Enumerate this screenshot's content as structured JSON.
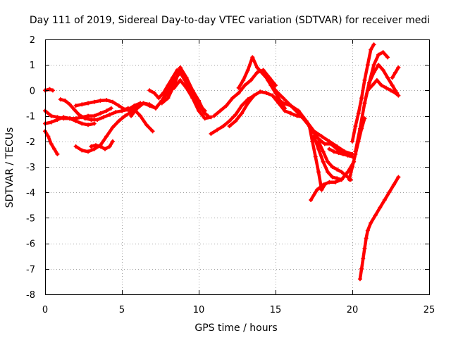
{
  "chart_data": {
    "type": "scatter",
    "title": "Day 111 of 2019, Sidereal Day-to-day VTEC variation (SDTVAR) for receiver medi",
    "xlabel": "GPS time / hours",
    "ylabel": "SDTVAR / TECUs",
    "xlim": [
      0,
      25
    ],
    "ylim": [
      -8,
      2
    ],
    "xticks": [
      0,
      5,
      10,
      15,
      20,
      25
    ],
    "yticks": [
      -8,
      -7,
      -6,
      -5,
      -4,
      -3,
      -2,
      -1,
      0,
      1,
      2
    ],
    "grid": true,
    "marker": "+",
    "color": "#ff0000",
    "series": [
      {
        "x": [
          0.0,
          0.3,
          0.5
        ],
        "y": [
          0.0,
          0.05,
          0.0
        ]
      },
      {
        "x": [
          0.0,
          0.2,
          0.4,
          0.6,
          0.8
        ],
        "y": [
          -1.6,
          -1.8,
          -2.1,
          -2.3,
          -2.5
        ]
      },
      {
        "x": [
          0.0,
          0.4,
          0.8,
          1.2,
          1.6,
          2.0,
          2.4,
          2.8,
          3.2,
          3.6,
          4.0,
          4.3
        ],
        "y": [
          -0.8,
          -1.0,
          -1.05,
          -1.1,
          -1.1,
          -1.1,
          -1.05,
          -1.0,
          -1.0,
          -0.9,
          -0.8,
          -0.7
        ]
      },
      {
        "x": [
          0.0,
          0.4,
          0.8,
          1.2,
          1.6,
          2.0,
          2.4,
          2.8,
          3.2
        ],
        "y": [
          -1.3,
          -1.25,
          -1.15,
          -1.05,
          -1.1,
          -1.2,
          -1.3,
          -1.35,
          -1.3
        ]
      },
      {
        "x": [
          1.0,
          1.3,
          1.6,
          1.9,
          2.2,
          2.6,
          3.0,
          3.4,
          3.8,
          4.2,
          4.6,
          5.0,
          5.4,
          5.8,
          6.2
        ],
        "y": [
          -0.35,
          -0.4,
          -0.55,
          -0.75,
          -0.95,
          -1.1,
          -1.15,
          -1.15,
          -1.05,
          -0.95,
          -0.85,
          -0.8,
          -0.75,
          -0.6,
          -0.5
        ]
      },
      {
        "x": [
          2.0,
          2.4,
          2.8,
          3.2,
          3.6,
          4.0,
          4.4,
          4.8,
          5.2,
          5.6,
          6.0,
          6.4
        ],
        "y": [
          -0.6,
          -0.55,
          -0.5,
          -0.45,
          -0.4,
          -0.38,
          -0.45,
          -0.6,
          -0.75,
          -0.8,
          -0.7,
          -0.5
        ]
      },
      {
        "x": [
          2.0,
          2.4,
          2.8,
          3.2,
          3.6,
          4.0,
          4.4,
          4.8,
          5.2,
          5.6
        ],
        "y": [
          -2.2,
          -2.35,
          -2.4,
          -2.3,
          -2.15,
          -1.8,
          -1.45,
          -1.2,
          -1.0,
          -0.85
        ]
      },
      {
        "x": [
          3.0,
          3.3,
          3.6,
          3.9,
          4.2,
          4.4
        ],
        "y": [
          -2.2,
          -2.15,
          -2.2,
          -2.3,
          -2.2,
          -2.0
        ]
      },
      {
        "x": [
          5.0,
          5.4,
          5.8,
          6.2,
          6.6,
          7.0
        ],
        "y": [
          -0.8,
          -0.7,
          -0.75,
          -1.0,
          -1.35,
          -1.6
        ]
      },
      {
        "x": [
          5.6,
          6.0,
          6.4,
          6.8,
          7.2,
          7.6,
          8.0,
          8.4
        ],
        "y": [
          -0.8,
          -0.6,
          -0.5,
          -0.6,
          -0.7,
          -0.4,
          -0.1,
          0.2
        ]
      },
      {
        "x": [
          5.6,
          6.0,
          6.4,
          6.8,
          7.2,
          7.6,
          8.0,
          8.4,
          8.8,
          9.2,
          9.6,
          10.0,
          10.4
        ],
        "y": [
          -1.0,
          -0.7,
          -0.5,
          -0.55,
          -0.7,
          -0.4,
          0.0,
          0.4,
          0.7,
          0.3,
          -0.2,
          -0.6,
          -0.9
        ]
      },
      {
        "x": [
          6.8,
          7.1,
          7.4,
          7.7,
          8.0,
          8.3,
          8.6,
          8.9,
          9.2,
          9.5,
          9.8,
          10.1,
          10.4
        ],
        "y": [
          0.0,
          -0.1,
          -0.3,
          -0.1,
          0.2,
          0.5,
          0.8,
          0.6,
          0.3,
          0.0,
          -0.3,
          -0.6,
          -0.8
        ]
      },
      {
        "x": [
          7.6,
          8.0,
          8.4,
          8.8,
          9.2,
          9.6,
          10.0,
          10.4,
          10.6
        ],
        "y": [
          -0.5,
          -0.3,
          0.2,
          0.9,
          0.5,
          0.0,
          -0.4,
          -0.9,
          -1.0
        ]
      },
      {
        "x": [
          8.4,
          8.8,
          9.2,
          9.6,
          10.0,
          10.4,
          10.8
        ],
        "y": [
          0.1,
          0.4,
          0.1,
          -0.3,
          -0.8,
          -1.1,
          -1.05
        ]
      },
      {
        "x": [
          10.8,
          11.2,
          11.6,
          12.0,
          12.4,
          12.8,
          13.2,
          13.6
        ],
        "y": [
          -1.7,
          -1.55,
          -1.4,
          -1.2,
          -0.95,
          -0.6,
          -0.35,
          -0.2
        ]
      },
      {
        "x": [
          11.0,
          11.4,
          11.8,
          12.2,
          12.6,
          13.0,
          13.4,
          13.8,
          14.2,
          14.6,
          15.0
        ],
        "y": [
          -1.0,
          -0.8,
          -0.6,
          -0.3,
          -0.1,
          0.2,
          0.4,
          0.7,
          0.8,
          0.5,
          0.2
        ]
      },
      {
        "x": [
          12.0,
          12.4,
          12.8,
          13.2,
          13.6,
          14.0,
          14.4,
          14.8,
          15.2,
          15.6,
          16.0,
          16.4,
          16.8
        ],
        "y": [
          -1.4,
          -1.2,
          -0.9,
          -0.5,
          -0.2,
          -0.05,
          -0.1,
          -0.2,
          -0.5,
          -0.8,
          -0.9,
          -1.0,
          -1.05
        ]
      },
      {
        "x": [
          12.6,
          12.9,
          13.2,
          13.5,
          13.8,
          14.1,
          14.4,
          14.7,
          15.0,
          15.3,
          15.6
        ],
        "y": [
          0.1,
          0.4,
          0.8,
          1.3,
          0.9,
          0.7,
          0.5,
          0.2,
          -0.1,
          -0.4,
          -0.7
        ]
      },
      {
        "x": [
          14.5,
          15.0,
          15.5,
          16.0,
          16.5,
          17.0,
          17.5,
          18.0,
          18.5,
          19.0,
          19.5,
          20.0
        ],
        "y": [
          0.4,
          0.0,
          -0.3,
          -0.6,
          -0.9,
          -1.2,
          -1.6,
          -1.8,
          -2.0,
          -2.2,
          -2.4,
          -2.5
        ]
      },
      {
        "x": [
          15.0,
          15.5,
          16.0,
          16.5,
          17.0,
          17.4,
          17.8,
          18.2,
          18.6,
          19.0,
          19.4,
          19.8
        ],
        "y": [
          -0.3,
          -0.5,
          -0.6,
          -0.8,
          -1.2,
          -1.6,
          -1.9,
          -2.1,
          -2.1,
          -2.3,
          -2.45,
          -2.55
        ]
      },
      {
        "x": [
          16.8,
          17.2,
          17.4,
          17.6,
          17.8,
          18.0,
          18.2
        ],
        "y": [
          -1.1,
          -1.4,
          -2.0,
          -2.6,
          -3.2,
          -3.9,
          -3.7
        ]
      },
      {
        "x": [
          17.3,
          17.7,
          18.1,
          18.5,
          18.9,
          19.3,
          19.7,
          20.1
        ],
        "y": [
          -4.3,
          -3.9,
          -3.7,
          -3.6,
          -3.6,
          -3.5,
          -3.2,
          -2.8
        ]
      },
      {
        "x": [
          17.5,
          17.8,
          18.1,
          18.4,
          18.7,
          19.0,
          19.3
        ],
        "y": [
          -1.8,
          -2.3,
          -2.8,
          -3.2,
          -3.4,
          -3.45,
          -3.5
        ]
      },
      {
        "x": [
          17.8,
          18.1,
          18.4,
          18.7,
          19.0,
          19.3,
          19.6,
          19.9
        ],
        "y": [
          -2.0,
          -2.4,
          -2.8,
          -3.0,
          -3.1,
          -3.2,
          -3.35,
          -3.5
        ]
      },
      {
        "x": [
          18.5,
          18.8,
          19.1,
          19.4,
          19.7,
          20.0
        ],
        "y": [
          -2.3,
          -2.4,
          -2.45,
          -2.5,
          -2.55,
          -2.6
        ]
      },
      {
        "x": [
          19.8,
          20.0,
          20.2,
          20.4,
          20.6,
          20.8
        ],
        "y": [
          -3.5,
          -3.0,
          -2.5,
          -2.0,
          -1.5,
          -1.1
        ]
      },
      {
        "x": [
          20.0,
          20.2,
          20.4,
          20.6,
          20.8,
          21.0,
          21.2,
          21.4
        ],
        "y": [
          -2.0,
          -1.4,
          -0.9,
          -0.3,
          0.4,
          1.0,
          1.6,
          1.8
        ]
      },
      {
        "x": [
          20.2,
          20.5,
          20.8,
          21.1,
          21.4,
          21.7,
          22.0,
          22.3
        ],
        "y": [
          -2.4,
          -1.5,
          -0.5,
          0.3,
          1.0,
          1.4,
          1.5,
          1.3
        ]
      },
      {
        "x": [
          20.8,
          21.1,
          21.4,
          21.7,
          22.0,
          22.3,
          22.6,
          22.9
        ],
        "y": [
          -0.5,
          0.3,
          0.7,
          1.0,
          0.8,
          0.5,
          0.2,
          -0.1
        ]
      },
      {
        "x": [
          21.0,
          21.3,
          21.6,
          21.9,
          22.2,
          22.5,
          22.8,
          23.0
        ],
        "y": [
          0.0,
          0.2,
          0.4,
          0.2,
          0.1,
          0.0,
          -0.1,
          -0.2
        ]
      },
      {
        "x": [
          22.6,
          22.8,
          23.0
        ],
        "y": [
          0.5,
          0.7,
          0.9
        ]
      },
      {
        "x": [
          20.5,
          20.6,
          20.7,
          20.8,
          20.9,
          21.0,
          21.2,
          21.5,
          21.8,
          22.1,
          22.4,
          22.7,
          23.0
        ],
        "y": [
          -7.4,
          -7.0,
          -6.6,
          -6.2,
          -5.8,
          -5.5,
          -5.2,
          -4.9,
          -4.6,
          -4.3,
          -4.0,
          -3.7,
          -3.4
        ]
      }
    ]
  }
}
